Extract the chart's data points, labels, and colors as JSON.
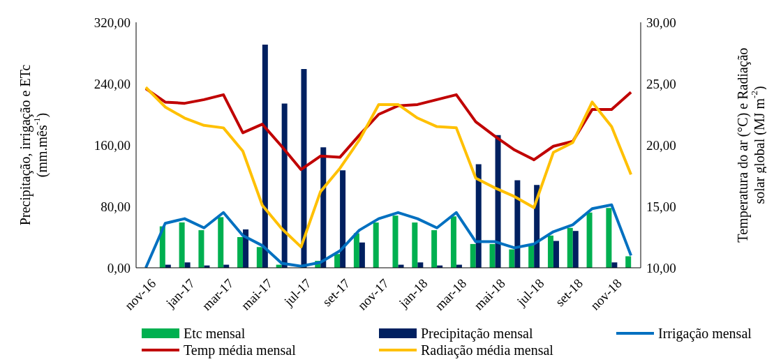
{
  "chart_data": {
    "type": "bar",
    "categories": [
      "nov-16",
      null,
      "jan-17",
      null,
      "mar-17",
      null,
      "mai-17",
      null,
      "jul-17",
      null,
      "set-17",
      null,
      "nov-17",
      null,
      "jan-18",
      null,
      "mar-18",
      null,
      "mai-18",
      null,
      "jul-18",
      null,
      "set-18",
      null,
      "nov-18",
      null
    ],
    "ylabel": "Precipitação, irrigação e ETc (mm.mês$^{-1}$)",
    "y2label": "Temperatura do ar (°C) e Radiação solar global (MJ m$^{-2}$)",
    "ylim": [
      0,
      320
    ],
    "yticks": [
      {
        "value": 0,
        "label": "0,00"
      },
      {
        "value": 80,
        "label": "80,00"
      },
      {
        "value": 160,
        "label": "160,00"
      },
      {
        "value": 240,
        "label": "240,00"
      },
      {
        "value": 320,
        "label": "320,00"
      }
    ],
    "y2lim": [
      10,
      30
    ],
    "y2ticks": [
      {
        "value": 10,
        "label": "10,00"
      },
      {
        "value": 15,
        "label": "15,00"
      },
      {
        "value": 20,
        "label": "20,00"
      },
      {
        "value": 25,
        "label": "25,00"
      },
      {
        "value": 30,
        "label": "30,00"
      }
    ],
    "legend": "bottom",
    "grid": false,
    "series": [
      {
        "name": "Etc mensal",
        "color": "#00b050",
        "values": [
          0,
          54,
          59,
          49,
          66,
          40,
          27,
          4,
          0,
          9,
          18,
          45,
          59,
          68,
          59,
          49,
          67,
          31,
          31,
          24,
          29,
          42,
          52,
          72,
          78,
          15
        ]
      },
      {
        "name": "Precipitação mensal",
        "color": "#002060",
        "values": [
          0,
          4,
          7,
          3,
          4,
          50,
          291,
          214,
          259,
          157,
          127,
          33,
          0,
          4,
          7,
          3,
          4,
          135,
          173,
          114,
          108,
          35,
          48,
          0,
          7,
          0
        ]
      },
      {
        "name": "Irrigação mensal",
        "type": "line",
        "color": "#0070c0",
        "values": [
          0,
          58,
          64,
          52,
          72,
          42,
          29,
          6,
          2,
          7,
          22,
          49,
          64,
          72,
          64,
          52,
          72,
          34,
          34,
          26,
          31,
          47,
          56,
          77,
          82,
          16
        ]
      },
      {
        "name": "Temp média mensal",
        "type": "line",
        "axis": "y2",
        "color": "#c00000",
        "values": [
          24.6,
          23.5,
          23.4,
          23.7,
          24.1,
          21.0,
          21.7,
          19.9,
          18.0,
          19.1,
          19.0,
          20.8,
          22.5,
          23.2,
          23.3,
          23.7,
          24.1,
          21.9,
          20.7,
          19.6,
          18.8,
          19.9,
          20.3,
          22.9,
          22.9,
          24.3
        ]
      },
      {
        "name": "Radiação média mensal",
        "type": "line",
        "axis": "y2",
        "color": "#ffc000",
        "values": [
          24.7,
          23.1,
          22.2,
          21.6,
          21.4,
          19.5,
          15.1,
          13.2,
          11.7,
          16.2,
          18.1,
          20.4,
          23.3,
          23.3,
          22.2,
          21.5,
          21.4,
          17.3,
          16.5,
          15.8,
          14.9,
          19.4,
          20.2,
          23.5,
          21.5,
          17.6
        ]
      }
    ]
  }
}
